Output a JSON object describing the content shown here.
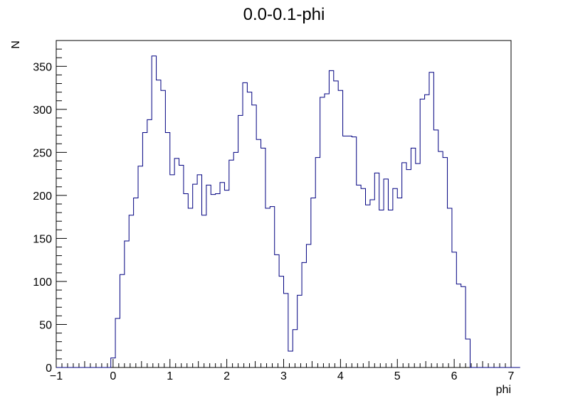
{
  "chart_data": {
    "type": "histogram",
    "title": "0.0-0.1-phi",
    "xlabel": "phi",
    "ylabel": "N",
    "xlim": [
      -1,
      7
    ],
    "ylim": [
      0,
      380
    ],
    "grid": false,
    "legend": "none",
    "line_color": "#000080",
    "bin_width": 0.08,
    "bin_start": -1,
    "x_ticks": [
      -1,
      0,
      1,
      2,
      3,
      4,
      5,
      6,
      7
    ],
    "x_tick_labels": [
      "−1",
      "0",
      "1",
      "2",
      "3",
      "4",
      "5",
      "6",
      "7"
    ],
    "y_ticks": [
      0,
      50,
      100,
      150,
      200,
      250,
      300,
      350
    ],
    "y_tick_labels": [
      "0",
      "50",
      "100",
      "150",
      "200",
      "250",
      "300",
      "350"
    ],
    "values": [
      0,
      0,
      0,
      0,
      0,
      0,
      0,
      0,
      0,
      0,
      0,
      0,
      11,
      57,
      108,
      147,
      177,
      197,
      234,
      273,
      288,
      362,
      334,
      322,
      273,
      224,
      243,
      235,
      202,
      185,
      213,
      224,
      177,
      212,
      201,
      202,
      215,
      206,
      241,
      250,
      293,
      331,
      320,
      305,
      265,
      255,
      185,
      187,
      131,
      106,
      86,
      19,
      44,
      84,
      122,
      143,
      197,
      244,
      314,
      318,
      345,
      333,
      322,
      269,
      269,
      268,
      212,
      208,
      189,
      195,
      226,
      183,
      219,
      183,
      208,
      197,
      238,
      230,
      255,
      237,
      312,
      317,
      343,
      276,
      251,
      244,
      185,
      134,
      97,
      94,
      33,
      0,
      0,
      0,
      0,
      0,
      0,
      0,
      0,
      0,
      0,
      0
    ]
  }
}
